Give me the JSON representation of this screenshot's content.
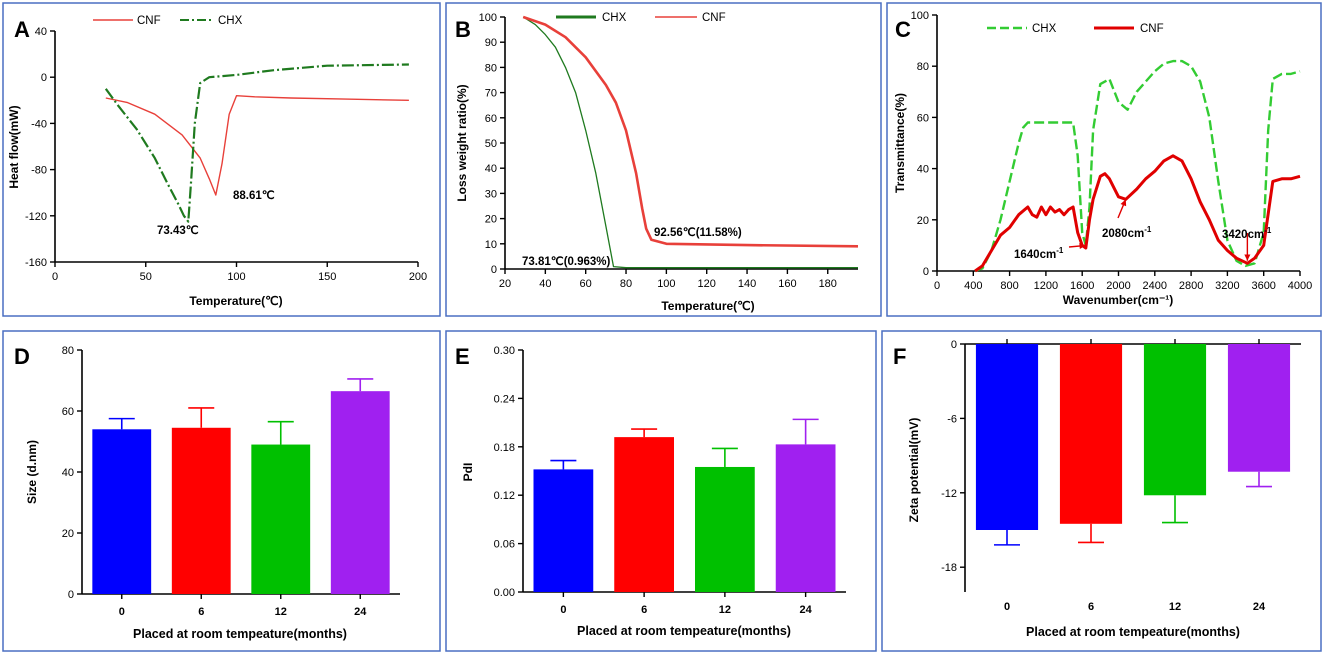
{
  "colors": {
    "green": "#1f7a1f",
    "lightgreen": "#33cc33",
    "red": "#e8403a",
    "darkred": "#e00000",
    "blue": "#0000ff",
    "barred": "#ff0000",
    "bargreen": "#00c000",
    "purple": "#a020f0",
    "frame": "#4a6fc2"
  },
  "chart_data": [
    {
      "panel": "A",
      "type": "line",
      "title": "",
      "xlabel": "Temperature(℃)",
      "ylabel": "Heat flow(mW)",
      "xlim": [
        0,
        200
      ],
      "ylim": [
        -160,
        40
      ],
      "xticks": [
        0,
        50,
        100,
        150,
        200
      ],
      "yticks": [
        40,
        0,
        -40,
        -80,
        -120,
        -160
      ],
      "legend": [
        "CNF",
        "CHX"
      ],
      "legend_position": "top",
      "series": [
        {
          "name": "CNF",
          "color": "red",
          "dash": false,
          "x": [
            28,
            40,
            55,
            70,
            80,
            85,
            88.61,
            92,
            96,
            100,
            110,
            130,
            160,
            195
          ],
          "y": [
            -18,
            -22,
            -32,
            -50,
            -70,
            -88,
            -102,
            -75,
            -32,
            -16,
            -17,
            -18,
            -19,
            -20
          ]
        },
        {
          "name": "CHX",
          "color": "green",
          "dash": true,
          "x": [
            28,
            35,
            45,
            55,
            62,
            68,
            71,
            73.43,
            75,
            77,
            80,
            85,
            100,
            120,
            150,
            195
          ],
          "y": [
            -10,
            -25,
            -45,
            -70,
            -92,
            -110,
            -120,
            -125,
            -90,
            -40,
            -5,
            0,
            2,
            6,
            10,
            11
          ]
        }
      ],
      "annotations": [
        "73.43℃",
        "88.61℃"
      ]
    },
    {
      "panel": "B",
      "type": "line",
      "title": "",
      "xlabel": "Temperature(℃)",
      "ylabel": "Loss weight ratio(%)",
      "xlim": [
        20,
        195
      ],
      "ylim": [
        0,
        100
      ],
      "xticks": [
        20,
        40,
        60,
        80,
        100,
        120,
        140,
        160,
        180
      ],
      "yticks": [
        0,
        10,
        20,
        30,
        40,
        50,
        60,
        70,
        80,
        90,
        100
      ],
      "legend": [
        "CHX",
        "CNF"
      ],
      "legend_position": "top",
      "series": [
        {
          "name": "CHX",
          "color": "green",
          "dash": false,
          "x": [
            29,
            35,
            40,
            45,
            50,
            55,
            60,
            65,
            70,
            73.81,
            80,
            120,
            195
          ],
          "y": [
            100,
            97,
            93,
            88,
            80,
            70,
            55,
            38,
            17,
            0.963,
            0.5,
            0.5,
            0.5
          ]
        },
        {
          "name": "CNF",
          "color": "red",
          "dash": false,
          "x": [
            29,
            40,
            50,
            60,
            70,
            75,
            80,
            85,
            88,
            90,
            92.56,
            100,
            140,
            195
          ],
          "y": [
            100,
            97,
            92,
            84,
            73,
            66,
            55,
            38,
            24,
            16,
            11.58,
            10,
            9.5,
            9
          ]
        }
      ],
      "annotations": [
        "92.56℃(11.58%)",
        "73.81℃(0.963%)"
      ]
    },
    {
      "panel": "C",
      "type": "line",
      "title": "",
      "xlabel": "Wavenumber(cm⁻¹)",
      "ylabel": "Transmittance(%)",
      "xlim": [
        0,
        4000
      ],
      "ylim": [
        0,
        100
      ],
      "xticks": [
        0,
        400,
        800,
        1200,
        1600,
        2000,
        2400,
        2800,
        3200,
        3600,
        4000
      ],
      "yticks": [
        0,
        20,
        40,
        60,
        80,
        100
      ],
      "legend": [
        "CHX",
        "CNF"
      ],
      "legend_position": "top",
      "series": [
        {
          "name": "CHX",
          "color": "lightgreen",
          "dash": true,
          "x": [
            420,
            500,
            600,
            700,
            800,
            900,
            950,
            1000,
            1200,
            1400,
            1500,
            1550,
            1600,
            1640,
            1680,
            1720,
            1800,
            1900,
            2000,
            2100,
            2200,
            2300,
            2400,
            2500,
            2600,
            2700,
            2800,
            2900,
            3000,
            3100,
            3200,
            3300,
            3400,
            3500,
            3600,
            3650,
            3700,
            3800,
            3900,
            4000
          ],
          "y": [
            0,
            1,
            8,
            20,
            35,
            50,
            56,
            58,
            58,
            58,
            58,
            45,
            15,
            10,
            25,
            55,
            73,
            75,
            66,
            63,
            70,
            74,
            78,
            81,
            82,
            82,
            80,
            74,
            60,
            35,
            12,
            4,
            2,
            3,
            15,
            55,
            75,
            77,
            77,
            78
          ]
        },
        {
          "name": "CNF",
          "color": "darkred",
          "dash": false,
          "x": [
            420,
            500,
            600,
            700,
            800,
            900,
            1000,
            1050,
            1100,
            1150,
            1200,
            1250,
            1300,
            1350,
            1400,
            1450,
            1500,
            1550,
            1600,
            1640,
            1680,
            1720,
            1800,
            1850,
            1900,
            2000,
            2080,
            2200,
            2300,
            2400,
            2500,
            2600,
            2700,
            2800,
            2900,
            3000,
            3100,
            3200,
            3300,
            3420,
            3500,
            3600,
            3700,
            3800,
            3900,
            4000
          ],
          "y": [
            0,
            2,
            8,
            14,
            17,
            22,
            25,
            22,
            21,
            25,
            22,
            25,
            23,
            24,
            22,
            24,
            25,
            15,
            10,
            9,
            20,
            28,
            37,
            38,
            36,
            29,
            28,
            32,
            36,
            39,
            43,
            45,
            43,
            36,
            27,
            20,
            12,
            8,
            5,
            3,
            5,
            10,
            35,
            36,
            36,
            37
          ]
        }
      ],
      "annotations": [
        "1640cm",
        "2080cm",
        "3420cm"
      ],
      "annotation_sup": "-1"
    },
    {
      "panel": "D",
      "type": "bar",
      "title": "",
      "xlabel": "Placed at room tempeature(months)",
      "ylabel": "Size (d.nm)",
      "categories": [
        "0",
        "6",
        "12",
        "24"
      ],
      "values": [
        54,
        54.5,
        49,
        66.5
      ],
      "errors": [
        3.5,
        6.5,
        7.5,
        4
      ],
      "bar_colors": [
        "blue",
        "barred",
        "bargreen",
        "purple"
      ],
      "ylim": [
        0,
        80
      ],
      "yticks": [
        0,
        20,
        40,
        60,
        80
      ]
    },
    {
      "panel": "E",
      "type": "bar",
      "title": "",
      "xlabel": "Placed at room tempeature(months)",
      "ylabel": "PdI",
      "categories": [
        "0",
        "6",
        "12",
        "24"
      ],
      "values": [
        0.152,
        0.192,
        0.155,
        0.183
      ],
      "errors": [
        0.011,
        0.01,
        0.023,
        0.031
      ],
      "bar_colors": [
        "blue",
        "barred",
        "bargreen",
        "purple"
      ],
      "ylim": [
        0,
        0.3
      ],
      "yticks": [
        0.0,
        0.06,
        0.12,
        0.18,
        0.24,
        0.3
      ],
      "ytick_labels": [
        "0.00",
        "0.06",
        "0.12",
        "0.18",
        "0.24",
        "0.30"
      ]
    },
    {
      "panel": "F",
      "type": "bar",
      "title": "",
      "xlabel": "Placed at room tempeature(months)",
      "ylabel": "Zeta potential(mV)",
      "categories": [
        "0",
        "6",
        "12",
        "24"
      ],
      "values": [
        -15,
        -14.5,
        -12.2,
        -10.3
      ],
      "errors": [
        1.2,
        1.5,
        2.2,
        1.2
      ],
      "bar_colors": [
        "blue",
        "barred",
        "bargreen",
        "purple"
      ],
      "ylim": [
        -20,
        0
      ],
      "yticks": [
        0,
        -6,
        -12,
        -18
      ],
      "xaxis_at_top": true
    }
  ]
}
